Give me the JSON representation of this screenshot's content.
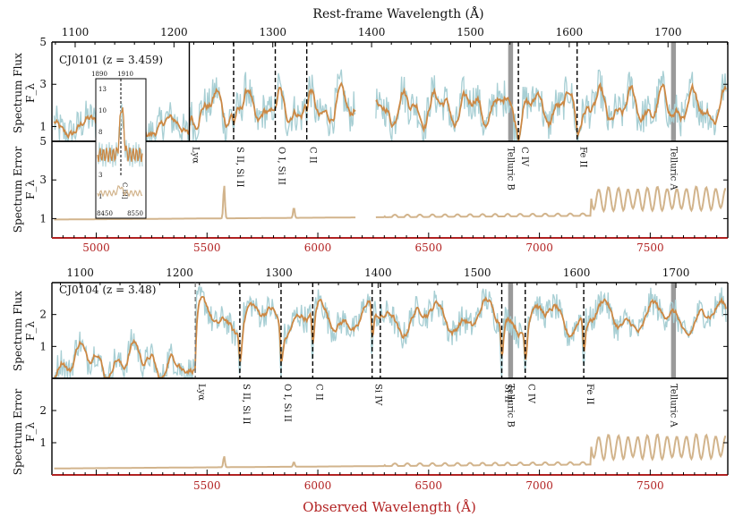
{
  "chart_data": {
    "type": "line",
    "top_axis_title": "Rest-frame Wavelength (Å)",
    "bottom_axis_title": "Observed Wavelength (Å)",
    "observed_xlim": [
      4800,
      7850
    ],
    "observed_ticks": [
      5000,
      5500,
      6000,
      6500,
      7000,
      7500
    ],
    "observed_ticks_lower": [
      5500,
      6000,
      6500,
      7000,
      7500
    ],
    "rest_ticks": [
      1100,
      1200,
      1300,
      1400,
      1500,
      1600,
      1700
    ],
    "colors": {
      "flux": "#cc8844",
      "flux_raw": "#a8cfd4",
      "error": "#d2b48c",
      "telluric": "#888888",
      "bottom_axis": "#b22222"
    },
    "objects": [
      {
        "name": "CJ0101",
        "z": 3.459,
        "label": "CJ0101 (z = 3.459)",
        "flux_ylabel": "Spectrum Flux",
        "flux_ylabel_sub": "F_λ",
        "error_ylabel": "Spectrum Error",
        "error_ylabel_sub": "F_λ",
        "flux_ylim": [
          0.3,
          5
        ],
        "flux_yticks": [
          1,
          3,
          5
        ],
        "flux_ytick_labels": [
          "1",
          "3",
          "5"
        ],
        "error_ylim": [
          0,
          5
        ],
        "error_yticks": [
          1,
          3,
          5
        ],
        "error_ytick_labels": [
          "1",
          "3",
          "5"
        ],
        "gap": [
          6170,
          6260
        ],
        "lines": [
          {
            "name": "Lyα",
            "obs": 5420,
            "style": "solid"
          },
          {
            "name": "S II, Si II",
            "obs": 5620,
            "style": "dashed"
          },
          {
            "name": "O I, Si II",
            "obs": 5808,
            "style": "dashed"
          },
          {
            "name": "C II",
            "obs": 5950,
            "style": "dashed"
          },
          {
            "name": "C IV",
            "obs": 6905,
            "style": "dashed"
          },
          {
            "name": "Fe II",
            "obs": 7170,
            "style": "dashed"
          }
        ],
        "telluric": [
          {
            "name": "Telluric B",
            "obs": 6870,
            "width": 22
          },
          {
            "name": "Telluric A",
            "obs": 7605,
            "width": 22
          }
        ],
        "error_features": [
          {
            "obs": 5577,
            "height": 2.7
          },
          {
            "obs": 5892,
            "height": 1.5
          }
        ],
        "inset": {
          "xticks_top": [
            "1890",
            "1910"
          ],
          "yticks": [
            "13",
            "10",
            "8",
            "5",
            "3",
            "1"
          ],
          "xticks_bottom": [
            "8450",
            "8550"
          ],
          "line_label": "C III]"
        }
      },
      {
        "name": "CJ0104",
        "z": 3.48,
        "label": "CJ0104 (z = 3.48)",
        "flux_ylabel": "Spectrum Flux",
        "flux_ylabel_sub": "F_λ",
        "error_ylabel": "Spectrum Error",
        "error_ylabel_sub": "F_λ",
        "flux_ylim": [
          0,
          3
        ],
        "flux_yticks": [
          1,
          2
        ],
        "flux_ytick_labels": [
          "1",
          "2"
        ],
        "error_ylim": [
          0,
          3
        ],
        "error_yticks": [
          1,
          2
        ],
        "error_ytick_labels": [
          "1",
          "2"
        ],
        "gap": null,
        "lines": [
          {
            "name": "Lyα",
            "obs": 5447,
            "style": "dashed-gray"
          },
          {
            "name": "S II, Si II",
            "obs": 5648,
            "style": "dashed"
          },
          {
            "name": "O I, Si II",
            "obs": 5834,
            "style": "dashed"
          },
          {
            "name": "C II",
            "obs": 5977,
            "style": "dashed"
          },
          {
            "name": "Si IV",
            "obs": 6245,
            "style": "dashed"
          },
          {
            "name": "",
            "obs": 6282,
            "style": "dashed"
          },
          {
            "name": "Si II",
            "obs": 6830,
            "style": "dashed"
          },
          {
            "name": "C IV",
            "obs": 6936,
            "style": "dashed"
          },
          {
            "name": "Fe II",
            "obs": 7200,
            "style": "dashed"
          }
        ],
        "telluric": [
          {
            "name": "Telluric B",
            "obs": 6870,
            "width": 22
          },
          {
            "name": "Telluric A",
            "obs": 7605,
            "width": 22
          }
        ],
        "error_features": [
          {
            "obs": 5577,
            "height": 0.55
          },
          {
            "obs": 5892,
            "height": 0.35
          }
        ]
      }
    ]
  }
}
